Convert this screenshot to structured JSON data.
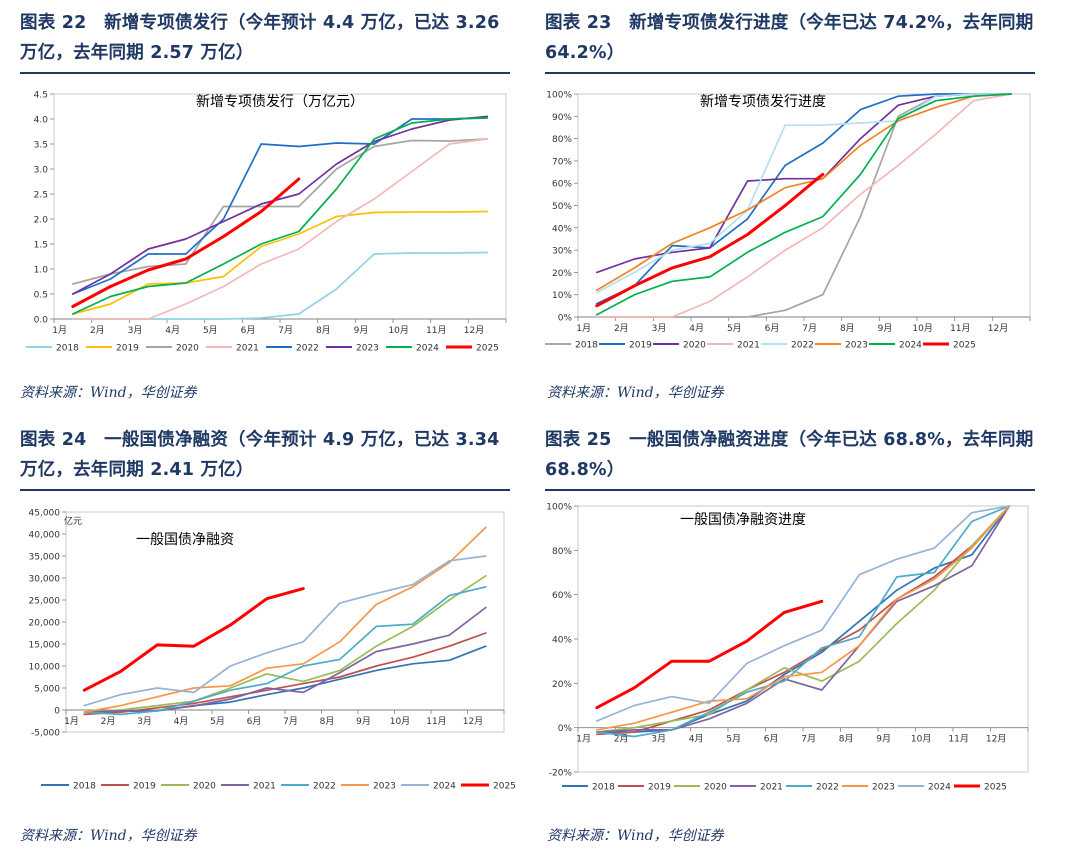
{
  "panels": [
    {
      "title": "图表 22　新增专项债发行（今年预计 4.4 万亿，已达 3.26 万亿，去年同期 2.57 万亿）",
      "source": "资料来源：Wind，华创证券"
    },
    {
      "title": "图表 23　新增专项债发行进度（今年已达 74.2%，去年同期 64.2%）",
      "source": "资料来源：Wind，华创证券"
    },
    {
      "title": "图表 24　一般国债净融资（今年预计 4.9 万亿，已达 3.34 万亿，去年同期 2.41 万亿）",
      "source": "资料来源：Wind，华创证券"
    },
    {
      "title": "图表 25　一般国债净融资进度（今年已达 68.8%，去年同期 68.8%）",
      "source": "资料来源：Wind，华创证券"
    }
  ],
  "colors": {
    "2018": "#8fd3e6",
    "2019": "#ffc000",
    "2020": "#a5a5a5",
    "2021": "#f2b8b8",
    "2022": "#1f6fc6",
    "2023": "#7030a0",
    "2024": "#00b050",
    "2025": "#ff0000",
    "heading": "#1f3864"
  },
  "chart_data": [
    {
      "type": "line",
      "title": "新增专项债发行（万亿元）",
      "categories": [
        "1月",
        "2月",
        "3月",
        "4月",
        "5月",
        "6月",
        "7月",
        "8月",
        "9月",
        "10月",
        "11月",
        "12月"
      ],
      "yticks": [
        "0.0",
        "0.5",
        "1.0",
        "1.5",
        "2.0",
        "2.5",
        "3.0",
        "3.5",
        "4.0",
        "4.5"
      ],
      "ylim": [
        0,
        4.5
      ],
      "legend_position": "bottom",
      "series": [
        {
          "name": "2018",
          "color": "#8fd3e6",
          "values": [
            0.0,
            0.0,
            0.0,
            0.0,
            0.0,
            0.02,
            0.1,
            0.6,
            1.3,
            1.32,
            1.32,
            1.33
          ]
        },
        {
          "name": "2019",
          "color": "#ffc000",
          "values": [
            0.1,
            0.3,
            0.7,
            0.72,
            0.85,
            1.45,
            1.7,
            2.05,
            2.13,
            2.14,
            2.14,
            2.15
          ]
        },
        {
          "name": "2020",
          "color": "#a5a5a5",
          "values": [
            0.7,
            0.9,
            1.05,
            1.1,
            2.25,
            2.25,
            2.25,
            3.0,
            3.45,
            3.57,
            3.56,
            3.6
          ]
        },
        {
          "name": "2021",
          "color": "#f2b8b8",
          "values": [
            0.0,
            0.0,
            0.0,
            0.3,
            0.65,
            1.1,
            1.4,
            1.95,
            2.4,
            2.95,
            3.5,
            3.6
          ]
        },
        {
          "name": "2022",
          "color": "#1f6fc6",
          "values": [
            0.5,
            0.8,
            1.3,
            1.3,
            2.0,
            3.5,
            3.45,
            3.52,
            3.5,
            4.0,
            4.0,
            4.03
          ]
        },
        {
          "name": "2023",
          "color": "#7030a0",
          "values": [
            0.5,
            0.9,
            1.4,
            1.6,
            1.95,
            2.3,
            2.5,
            3.1,
            3.55,
            3.8,
            3.98,
            4.05
          ]
        },
        {
          "name": "2024",
          "color": "#00b050",
          "values": [
            0.1,
            0.45,
            0.65,
            0.72,
            1.1,
            1.5,
            1.75,
            2.6,
            3.6,
            3.92,
            4.0,
            4.02
          ]
        },
        {
          "name": "2025",
          "color": "#ff0000",
          "values": [
            0.25,
            0.65,
            0.98,
            1.2,
            1.65,
            2.15,
            2.8,
            null,
            null,
            null,
            null,
            null
          ]
        }
      ]
    },
    {
      "type": "line",
      "title": "新增专项债发行进度",
      "categories": [
        "1月",
        "2月",
        "3月",
        "4月",
        "5月",
        "6月",
        "7月",
        "8月",
        "9月",
        "10月",
        "11月",
        "12月"
      ],
      "yticks": [
        "0%",
        "10%",
        "20%",
        "30%",
        "40%",
        "50%",
        "60%",
        "70%",
        "80%",
        "90%",
        "100%"
      ],
      "ylim": [
        0,
        100
      ],
      "legend_position": "bottom",
      "series": [
        {
          "name": "2018",
          "color": "#a5a5a5",
          "values": [
            0,
            0,
            0,
            0,
            0,
            3,
            10,
            45,
            90,
            99,
            100,
            100
          ]
        },
        {
          "name": "2019",
          "color": "#1f6fc6",
          "values": [
            6,
            14,
            32,
            31,
            44,
            68,
            78,
            93,
            99,
            100,
            100,
            100
          ]
        },
        {
          "name": "2020",
          "color": "#7030a0",
          "values": [
            20,
            26,
            29,
            31,
            61,
            62,
            62,
            80,
            95,
            99,
            100,
            100
          ]
        },
        {
          "name": "2021",
          "color": "#f2b8b8",
          "values": [
            0,
            0,
            0,
            7,
            18,
            30,
            40,
            55,
            68,
            82,
            97,
            100
          ]
        },
        {
          "name": "2022",
          "color": "#b4e0f0",
          "values": [
            11,
            20,
            30,
            33,
            48,
            86,
            86,
            87,
            88,
            99,
            100,
            100
          ]
        },
        {
          "name": "2023",
          "color": "#f58220",
          "values": [
            12,
            22,
            33,
            40,
            48,
            58,
            62,
            77,
            88,
            94,
            99,
            100
          ]
        },
        {
          "name": "2024",
          "color": "#00b050",
          "values": [
            1,
            10,
            16,
            18,
            29,
            38,
            45,
            64,
            89,
            97,
            99,
            100
          ]
        },
        {
          "name": "2025",
          "color": "#ff0000",
          "values": [
            5,
            14,
            22,
            27,
            37,
            50,
            64,
            null,
            null,
            null,
            null,
            null
          ]
        }
      ]
    },
    {
      "type": "line",
      "title": "一般国债净融资",
      "unit": "亿元",
      "categories": [
        "1月",
        "2月",
        "3月",
        "4月",
        "5月",
        "6月",
        "7月",
        "8月",
        "9月",
        "10月",
        "11月",
        "12月"
      ],
      "yticks": [
        "-5,000",
        "0",
        "5,000",
        "10,000",
        "15,000",
        "20,000",
        "25,000",
        "30,000",
        "35,000",
        "40,000",
        "45,000"
      ],
      "ylim": [
        -5000,
        45000
      ],
      "legend_position": "bottom",
      "series": [
        {
          "name": "2018",
          "color": "#2e75b6",
          "values": [
            -500,
            -300,
            -200,
            1000,
            1800,
            3500,
            5000,
            7000,
            9000,
            10500,
            11300,
            14500
          ]
        },
        {
          "name": "2019",
          "color": "#c0504d",
          "values": [
            -1000,
            -500,
            500,
            1500,
            3000,
            4500,
            6000,
            7500,
            10000,
            12000,
            14500,
            17500
          ]
        },
        {
          "name": "2020",
          "color": "#9bbb59",
          "values": [
            -500,
            0,
            1000,
            2000,
            5000,
            8200,
            6500,
            9000,
            14500,
            19000,
            25000,
            30500
          ]
        },
        {
          "name": "2021",
          "color": "#8064a2",
          "values": [
            -500,
            -200,
            -100,
            900,
            2500,
            5000,
            4000,
            8500,
            13300,
            15000,
            17000,
            23300
          ]
        },
        {
          "name": "2022",
          "color": "#4bacc6",
          "values": [
            -500,
            -1000,
            -200,
            2000,
            4500,
            6000,
            10000,
            11500,
            19000,
            19500,
            26000,
            28000
          ]
        },
        {
          "name": "2023",
          "color": "#f79646",
          "values": [
            -500,
            1000,
            3000,
            5000,
            5500,
            9500,
            10500,
            15500,
            24000,
            28000,
            33500,
            41500
          ]
        },
        {
          "name": "2024",
          "color": "#95b3d7",
          "values": [
            1000,
            3500,
            5000,
            4000,
            10000,
            13000,
            15500,
            24300,
            26500,
            28500,
            33900,
            35000
          ]
        },
        {
          "name": "2025",
          "color": "#ff0000",
          "values": [
            4500,
            8800,
            14800,
            14500,
            19300,
            25300,
            27600,
            null,
            null,
            null,
            null,
            null
          ]
        }
      ]
    },
    {
      "type": "line",
      "title": "一般国债净融资进度",
      "categories": [
        "1月",
        "2月",
        "3月",
        "4月",
        "5月",
        "6月",
        "7月",
        "8月",
        "9月",
        "10月",
        "11月",
        "12月"
      ],
      "yticks": [
        "-20%",
        "0%",
        "20%",
        "40%",
        "60%",
        "80%",
        "100%"
      ],
      "ylim": [
        -20,
        100
      ],
      "legend_position": "bottom",
      "series": [
        {
          "name": "2018",
          "color": "#2e75b6",
          "values": [
            -2,
            -2,
            -1,
            6,
            12,
            24,
            34,
            48,
            62,
            72,
            78,
            100
          ]
        },
        {
          "name": "2019",
          "color": "#c0504d",
          "values": [
            -3,
            -2,
            3,
            8,
            17,
            25,
            35,
            44,
            58,
            68,
            82,
            100
          ]
        },
        {
          "name": "2020",
          "color": "#9bbb59",
          "values": [
            -2,
            0,
            3,
            6,
            17,
            27,
            21,
            30,
            47,
            62,
            82,
            100
          ]
        },
        {
          "name": "2021",
          "color": "#8064a2",
          "values": [
            -2,
            -1,
            -1,
            4,
            11,
            22,
            17,
            37,
            57,
            64,
            73,
            100
          ]
        },
        {
          "name": "2022",
          "color": "#4bacc6",
          "values": [
            -2,
            -4,
            -1,
            7,
            16,
            21,
            36,
            41,
            68,
            70,
            93,
            100
          ]
        },
        {
          "name": "2023",
          "color": "#f79646",
          "values": [
            -1,
            2,
            7,
            12,
            13,
            23,
            25,
            37,
            58,
            67,
            81,
            100
          ]
        },
        {
          "name": "2024",
          "color": "#95b3d7",
          "values": [
            3,
            10,
            14,
            11,
            29,
            37,
            44,
            69,
            76,
            81,
            97,
            100
          ]
        },
        {
          "name": "2025",
          "color": "#ff0000",
          "values": [
            9,
            18,
            30,
            30,
            39,
            52,
            57,
            null,
            null,
            null,
            null,
            null
          ]
        }
      ]
    }
  ]
}
